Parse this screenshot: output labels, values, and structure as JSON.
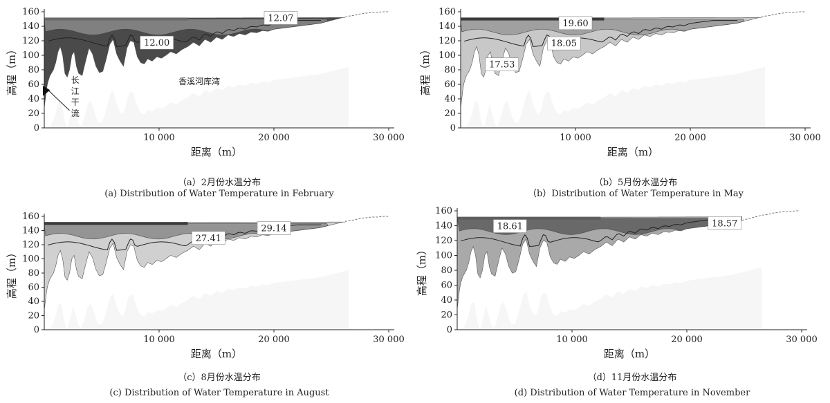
{
  "chart_data": [
    {
      "type": "area",
      "caption_cn": "（a）2月份水温分布",
      "caption_en": "(a)  Distribution of  Water Temperature in February",
      "xlabel": "距离（m）",
      "ylabel": "高程（m）",
      "xlim": [
        0,
        30000
      ],
      "ylim": [
        0,
        160
      ],
      "xticks": [
        "10 000",
        "20 000",
        "30 000"
      ],
      "yticks": [
        0,
        20,
        40,
        60,
        80,
        100,
        120,
        140,
        160
      ],
      "labels": [
        {
          "text": "12.07",
          "x": 20600,
          "y": 151
        },
        {
          "text": "12.00",
          "x": 9800,
          "y": 117
        }
      ],
      "annotations": [
        "香溪河库湾",
        "长江干流"
      ],
      "colors": {
        "water": "#4a4a4a",
        "upper": "#8a8a8a",
        "surface": "#6a6a6a",
        "light": "#f6f6f6"
      }
    },
    {
      "type": "area",
      "caption_cn": "（b）5月份水温分布",
      "caption_en": "（b）Distribution of  Water Temperature in May",
      "xlabel": "距离（m）",
      "ylabel": "高程（m）",
      "xlim": [
        0,
        30000
      ],
      "ylim": [
        0,
        160
      ],
      "xticks": [
        "10 000",
        "20 000",
        "30 000"
      ],
      "yticks": [
        0,
        20,
        40,
        60,
        80,
        100,
        120,
        140,
        160
      ],
      "labels": [
        {
          "text": "19.60",
          "x": 10000,
          "y": 144
        },
        {
          "text": "18.05",
          "x": 9000,
          "y": 116
        },
        {
          "text": "17.53",
          "x": 3600,
          "y": 87
        }
      ],
      "colors": {
        "water": "#c8c8c8",
        "upper": "#9a9a9a",
        "surface": "#3a3a3a",
        "light": "#f6f6f6"
      }
    },
    {
      "type": "area",
      "caption_cn": "（c）8月份水温分布",
      "caption_en": "(c) Distribution of Water Temperature in August",
      "xlabel": "距离（m）",
      "ylabel": "高程（m）",
      "xlim": [
        0,
        30000
      ],
      "ylim": [
        0,
        160
      ],
      "xticks": [
        "10 000",
        "20 000",
        "30 000"
      ],
      "yticks": [
        0,
        20,
        40,
        60,
        80,
        100,
        120,
        140,
        160
      ],
      "labels": [
        {
          "text": "27.41",
          "x": 14300,
          "y": 129
        },
        {
          "text": "29.14",
          "x": 20000,
          "y": 143
        }
      ],
      "colors": {
        "water": "#d0d0d0",
        "upper": "#8a8a8a",
        "surface": "#3a3a3a",
        "light": "#f6f6f6"
      }
    },
    {
      "type": "area",
      "caption_cn": "（d）11月份水温分布",
      "caption_en": "(d) Distribution of Water Temperature in November",
      "xlabel": "距离（m）",
      "ylabel": "高程（m）",
      "xlim": [
        0,
        30000
      ],
      "ylim": [
        0,
        160
      ],
      "xticks": [
        "10 000",
        "20 000",
        "30 000"
      ],
      "yticks": [
        0,
        20,
        40,
        60,
        80,
        100,
        120,
        140,
        160
      ],
      "labels": [
        {
          "text": "18.61",
          "x": 4600,
          "y": 139
        },
        {
          "text": "18.57",
          "x": 23300,
          "y": 143
        }
      ],
      "colors": {
        "water": "#a9a9a9",
        "upper": "#5e5e5e",
        "surface": "#5e5e5e",
        "light": "#f6f6f6"
      }
    }
  ]
}
